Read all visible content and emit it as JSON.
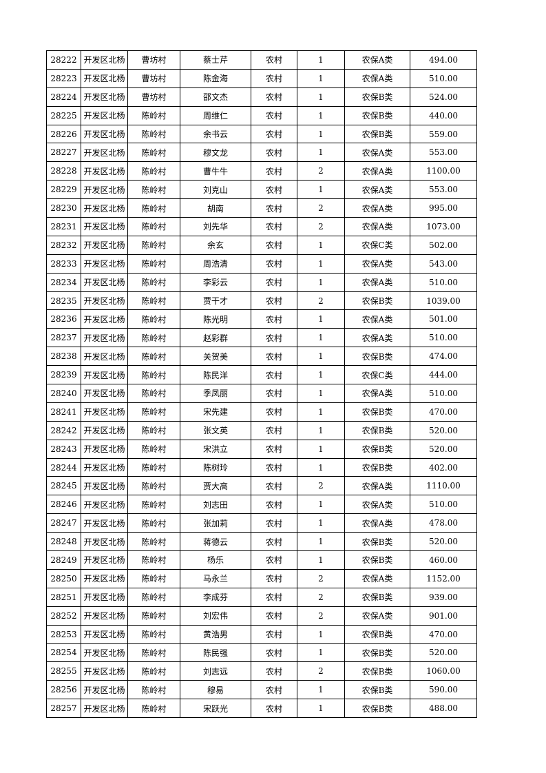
{
  "table": {
    "rows": [
      [
        "28222",
        "开发区北杨",
        "曹坊村",
        "蔡士芹",
        "农村",
        "1",
        "农保A类",
        "494.00"
      ],
      [
        "28223",
        "开发区北杨",
        "曹坊村",
        "陈金海",
        "农村",
        "1",
        "农保A类",
        "510.00"
      ],
      [
        "28224",
        "开发区北杨",
        "曹坊村",
        "邵文杰",
        "农村",
        "1",
        "农保B类",
        "524.00"
      ],
      [
        "28225",
        "开发区北杨",
        "陈岭村",
        "周维仁",
        "农村",
        "1",
        "农保B类",
        "440.00"
      ],
      [
        "28226",
        "开发区北杨",
        "陈岭村",
        "余书云",
        "农村",
        "1",
        "农保B类",
        "559.00"
      ],
      [
        "28227",
        "开发区北杨",
        "陈岭村",
        "穆文龙",
        "农村",
        "1",
        "农保A类",
        "553.00"
      ],
      [
        "28228",
        "开发区北杨",
        "陈岭村",
        "曹牛牛",
        "农村",
        "2",
        "农保A类",
        "1100.00"
      ],
      [
        "28229",
        "开发区北杨",
        "陈岭村",
        "刘克山",
        "农村",
        "1",
        "农保A类",
        "553.00"
      ],
      [
        "28230",
        "开发区北杨",
        "陈岭村",
        "胡南",
        "农村",
        "2",
        "农保A类",
        "995.00"
      ],
      [
        "28231",
        "开发区北杨",
        "陈岭村",
        "刘先华",
        "农村",
        "2",
        "农保A类",
        "1073.00"
      ],
      [
        "28232",
        "开发区北杨",
        "陈岭村",
        "余玄",
        "农村",
        "1",
        "农保C类",
        "502.00"
      ],
      [
        "28233",
        "开发区北杨",
        "陈岭村",
        "周浩清",
        "农村",
        "1",
        "农保A类",
        "543.00"
      ],
      [
        "28234",
        "开发区北杨",
        "陈岭村",
        "李彩云",
        "农村",
        "1",
        "农保A类",
        "510.00"
      ],
      [
        "28235",
        "开发区北杨",
        "陈岭村",
        "贾干才",
        "农村",
        "2",
        "农保B类",
        "1039.00"
      ],
      [
        "28236",
        "开发区北杨",
        "陈岭村",
        "陈光明",
        "农村",
        "1",
        "农保A类",
        "501.00"
      ],
      [
        "28237",
        "开发区北杨",
        "陈岭村",
        "赵彩群",
        "农村",
        "1",
        "农保A类",
        "510.00"
      ],
      [
        "28238",
        "开发区北杨",
        "陈岭村",
        "关贺美",
        "农村",
        "1",
        "农保B类",
        "474.00"
      ],
      [
        "28239",
        "开发区北杨",
        "陈岭村",
        "陈民洋",
        "农村",
        "1",
        "农保C类",
        "444.00"
      ],
      [
        "28240",
        "开发区北杨",
        "陈岭村",
        "季凤丽",
        "农村",
        "1",
        "农保A类",
        "510.00"
      ],
      [
        "28241",
        "开发区北杨",
        "陈岭村",
        "宋先建",
        "农村",
        "1",
        "农保B类",
        "470.00"
      ],
      [
        "28242",
        "开发区北杨",
        "陈岭村",
        "张文英",
        "农村",
        "1",
        "农保B类",
        "520.00"
      ],
      [
        "28243",
        "开发区北杨",
        "陈岭村",
        "宋洪立",
        "农村",
        "1",
        "农保B类",
        "520.00"
      ],
      [
        "28244",
        "开发区北杨",
        "陈岭村",
        "陈树玲",
        "农村",
        "1",
        "农保B类",
        "402.00"
      ],
      [
        "28245",
        "开发区北杨",
        "陈岭村",
        "贾大高",
        "农村",
        "2",
        "农保A类",
        "1110.00"
      ],
      [
        "28246",
        "开发区北杨",
        "陈岭村",
        "刘志田",
        "农村",
        "1",
        "农保A类",
        "510.00"
      ],
      [
        "28247",
        "开发区北杨",
        "陈岭村",
        "张加莉",
        "农村",
        "1",
        "农保A类",
        "478.00"
      ],
      [
        "28248",
        "开发区北杨",
        "陈岭村",
        "蒋德云",
        "农村",
        "1",
        "农保B类",
        "520.00"
      ],
      [
        "28249",
        "开发区北杨",
        "陈岭村",
        "杨乐",
        "农村",
        "1",
        "农保B类",
        "460.00"
      ],
      [
        "28250",
        "开发区北杨",
        "陈岭村",
        "马永兰",
        "农村",
        "2",
        "农保A类",
        "1152.00"
      ],
      [
        "28251",
        "开发区北杨",
        "陈岭村",
        "李成芬",
        "农村",
        "2",
        "农保B类",
        "939.00"
      ],
      [
        "28252",
        "开发区北杨",
        "陈岭村",
        "刘宏伟",
        "农村",
        "2",
        "农保A类",
        "901.00"
      ],
      [
        "28253",
        "开发区北杨",
        "陈岭村",
        "黄浩男",
        "农村",
        "1",
        "农保B类",
        "470.00"
      ],
      [
        "28254",
        "开发区北杨",
        "陈岭村",
        "陈民强",
        "农村",
        "1",
        "农保B类",
        "520.00"
      ],
      [
        "28255",
        "开发区北杨",
        "陈岭村",
        "刘志远",
        "农村",
        "2",
        "农保B类",
        "1060.00"
      ],
      [
        "28256",
        "开发区北杨",
        "陈岭村",
        "穆易",
        "农村",
        "1",
        "农保B类",
        "590.00"
      ],
      [
        "28257",
        "开发区北杨",
        "陈岭村",
        "宋跃光",
        "农村",
        "1",
        "农保B类",
        "488.00"
      ]
    ]
  }
}
